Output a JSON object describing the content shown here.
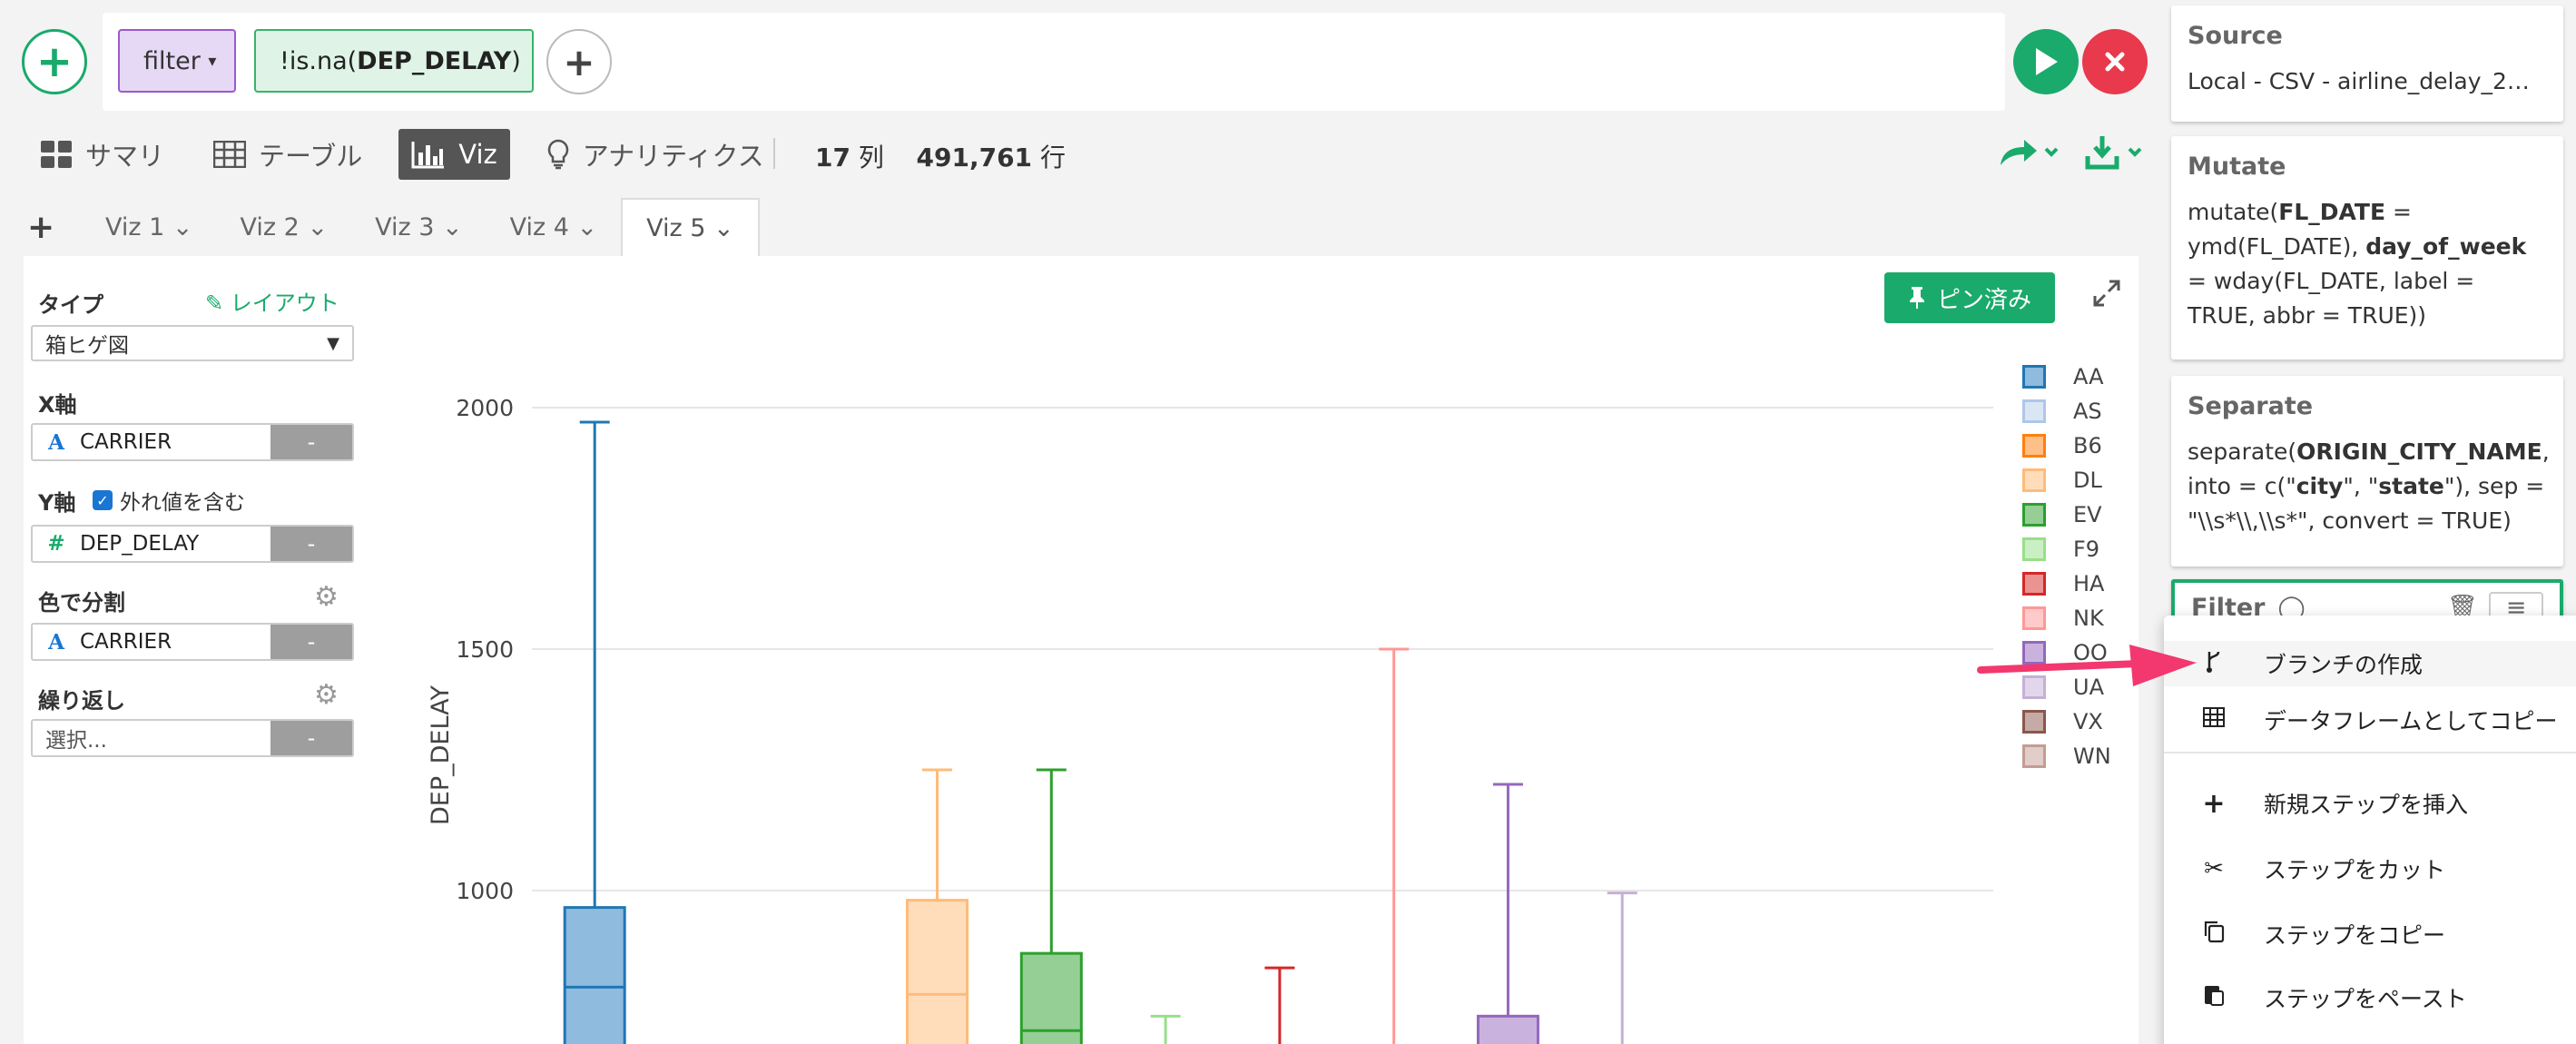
{
  "command": {
    "verb": "filter",
    "verb_caret": "▾",
    "expression_prefix": "!is.na(",
    "expression_column": "DEP_DELAY",
    "expression_suffix": ")"
  },
  "view_tabs": [
    {
      "label": "サマリ",
      "icon": "grid-icon"
    },
    {
      "label": "テーブル",
      "icon": "table-icon"
    },
    {
      "label": "Viz",
      "icon": "bar-chart-icon"
    },
    {
      "label": "アナリティクス",
      "icon": "lightbulb-icon"
    }
  ],
  "stats": {
    "columns_value": "17",
    "columns_label": "列",
    "rows_value": "491,761",
    "rows_label": "行"
  },
  "viz_tabs": [
    "Viz 1",
    "Viz 2",
    "Viz 3",
    "Viz 4",
    "Viz 5"
  ],
  "viz_tab_caret": "⌄",
  "config": {
    "type_label": "タイプ",
    "layout_label": "レイアウト",
    "type_value": "箱ヒゲ図",
    "x_label": "X軸",
    "x_field": "CARRIER",
    "y_label": "Y軸",
    "include_outliers_label": "外れ値を含む",
    "y_field": "DEP_DELAY",
    "color_label": "色で分割",
    "color_field": "CARRIER",
    "repeat_label": "繰り返し",
    "repeat_placeholder": "選択...",
    "remove_label": "-"
  },
  "pinned_label": "ピン済み",
  "chart_data": {
    "type": "box",
    "ylabel": "DEP_DELAY",
    "y_ticks": [
      1000,
      1500,
      2000
    ],
    "categories": [
      "AA",
      "AS",
      "B6",
      "DL",
      "EV",
      "F9",
      "HA",
      "NK",
      "OO",
      "UA",
      "VX",
      "WN"
    ],
    "colors": {
      "AA": [
        "#1f77b4",
        "#8fbbde"
      ],
      "AS": [
        "#aec7e8",
        "#dbe6f4"
      ],
      "B6": [
        "#ff7f0e",
        "#ffbf87"
      ],
      "DL": [
        "#ffbb78",
        "#ffddbb"
      ],
      "EV": [
        "#2ca02c",
        "#95cf95"
      ],
      "F9": [
        "#98df8a",
        "#cbefc4"
      ],
      "HA": [
        "#d62728",
        "#eb9393"
      ],
      "NK": [
        "#ff9896",
        "#ffcbca"
      ],
      "OO": [
        "#9467bd",
        "#c9b3de"
      ],
      "UA": [
        "#c5b0d5",
        "#e2d7ea"
      ],
      "VX": [
        "#8c564b",
        "#c5aaa5"
      ],
      "WN": [
        "#c49c94",
        "#e1cdc9"
      ]
    },
    "boxes": [
      {
        "name": "AA",
        "whisker_high": 1970,
        "q3": 965,
        "median": 800
      },
      {
        "name": "DL",
        "whisker_high": 1250,
        "q3": 980,
        "median": 785
      },
      {
        "name": "EV",
        "whisker_high": 1250,
        "q3": 870,
        "median": 710
      },
      {
        "name": "F9",
        "whisker_high": 740
      },
      {
        "name": "HA",
        "whisker_high": 840
      },
      {
        "name": "NK",
        "whisker_high": 1500
      },
      {
        "name": "OO",
        "whisker_high": 1220,
        "q3": 740
      },
      {
        "name": "UA",
        "whisker_high": 995
      }
    ]
  },
  "pipeline": {
    "source_title": "Source",
    "source_body": "Local - CSV - airline_delay_2…",
    "mutate_title": "Mutate",
    "mutate_parts": [
      "mutate(",
      "FL_DATE",
      " = ymd(FL_DATE), ",
      "day_of_week",
      " = wday(FL_DATE, label = TRUE, abbr = TRUE))"
    ],
    "separate_title": "Separate",
    "separate_parts": [
      "separate(",
      "ORIGIN_CITY_NAME",
      ", into = c(\"",
      "city",
      "\", \"",
      "state",
      "\"), sep = \"\\\\s*\\\\,\\\\s*\", convert = TRUE)"
    ],
    "filter_title": "Filter"
  },
  "context_menu": [
    {
      "label": "ブランチの作成",
      "icon": "branch-icon"
    },
    {
      "label": "データフレームとしてコピー",
      "icon": "table-icon"
    },
    {
      "label": "新規ステップを挿入",
      "icon": "plus-icon"
    },
    {
      "label": "ステップをカット",
      "icon": "scissors-icon"
    },
    {
      "label": "ステップをコピー",
      "icon": "copy-icon"
    },
    {
      "label": "ステップをペースト",
      "icon": "paste-icon"
    }
  ]
}
